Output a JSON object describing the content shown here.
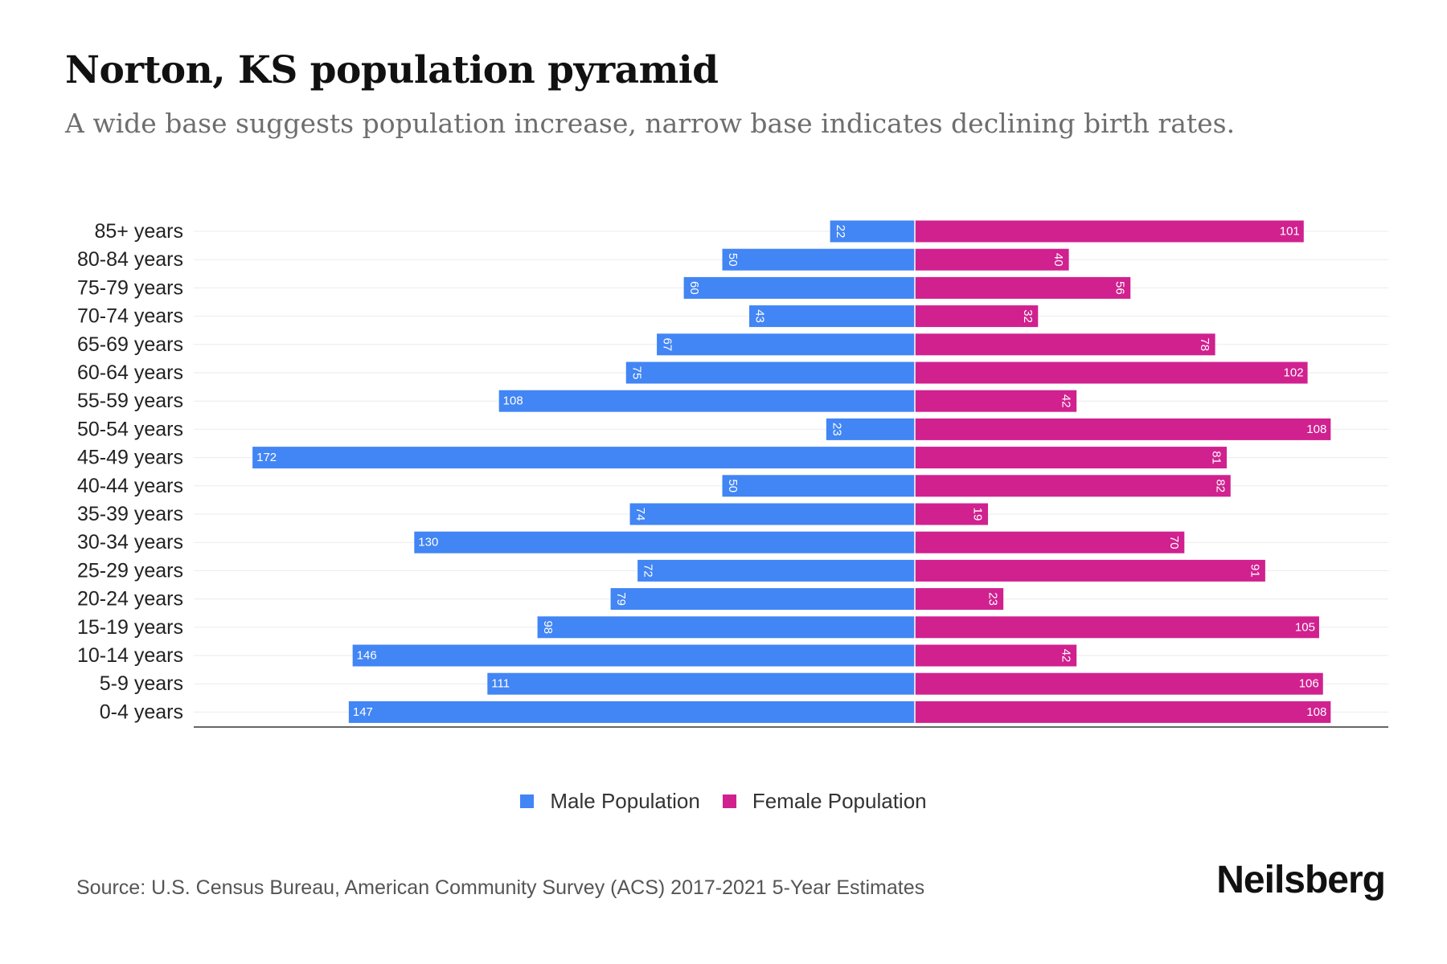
{
  "title": "Norton, KS population pyramid",
  "subtitle": "A wide base suggests population increase, narrow base indicates declining birth rates.",
  "legend": {
    "male": "Male Population",
    "female": "Female Population"
  },
  "source": "Source: U.S. Census Bureau, American Community Survey (ACS) 2017-2021 5-Year Estimates",
  "brand": "Neilsberg",
  "colors": {
    "male": "#4285f4",
    "female": "#d0218f",
    "grid": "#ebebeb",
    "axis": "#333333",
    "label": "#222222"
  },
  "chart_data": {
    "type": "bar",
    "orientation": "horizontal-diverging",
    "title": "Norton, KS population pyramid",
    "xlabel": "",
    "ylabel": "",
    "xlim": [
      -200,
      200
    ],
    "categories": [
      "85+ years",
      "80-84 years",
      "75-79 years",
      "70-74 years",
      "65-69 years",
      "60-64 years",
      "55-59 years",
      "50-54 years",
      "45-49 years",
      "40-44 years",
      "35-39 years",
      "30-34 years",
      "25-29 years",
      "20-24 years",
      "15-19 years",
      "10-14 years",
      "5-9 years",
      "0-4 years"
    ],
    "series": [
      {
        "name": "Male Population",
        "values": [
          22,
          50,
          60,
          43,
          67,
          75,
          108,
          23,
          172,
          50,
          74,
          130,
          72,
          79,
          98,
          146,
          111,
          147
        ]
      },
      {
        "name": "Female Population",
        "values": [
          101,
          40,
          56,
          32,
          78,
          102,
          42,
          108,
          81,
          82,
          19,
          70,
          91,
          23,
          105,
          42,
          106,
          108
        ]
      }
    ],
    "legend_position": "bottom-center"
  }
}
